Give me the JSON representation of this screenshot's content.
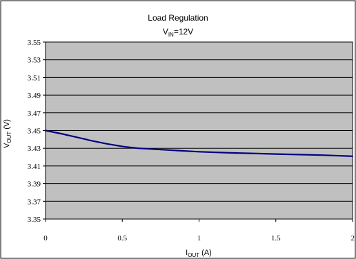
{
  "chart_data": {
    "type": "line",
    "title": "Load Regulation",
    "subtitle": {
      "main": "V",
      "sub": "IN",
      "rest": "=12V"
    },
    "xlabel": {
      "main": "I",
      "sub": "OUT",
      "rest": " (A)"
    },
    "ylabel": {
      "main": "V",
      "sub": "OUT",
      "rest": " (V)"
    },
    "xlim": [
      0,
      2
    ],
    "ylim": [
      3.35,
      3.55
    ],
    "x_ticks": [
      0,
      0.5,
      1,
      1.5,
      2
    ],
    "x_tick_labels": [
      "0",
      "0.5",
      "1",
      "1.5",
      "2"
    ],
    "y_ticks": [
      3.35,
      3.37,
      3.39,
      3.41,
      3.43,
      3.45,
      3.47,
      3.49,
      3.51,
      3.53,
      3.55
    ],
    "y_tick_labels": [
      "3.35",
      "3.37",
      "3.39",
      "3.41",
      "3.43",
      "3.45",
      "3.47",
      "3.49",
      "3.51",
      "3.53",
      "3.55"
    ],
    "grid": "horizontal",
    "legend": "none",
    "colors": {
      "line": "#000080",
      "plot_bg": "#c0c0c0",
      "grid": "#000000"
    },
    "series": [
      {
        "x": [
          0,
          0.1,
          0.2,
          0.3,
          0.4,
          0.5,
          0.6,
          0.8,
          1.0,
          1.2,
          1.5,
          1.8,
          2.0
        ],
        "y": [
          3.45,
          3.4465,
          3.4425,
          3.4385,
          3.435,
          3.432,
          3.43,
          3.428,
          3.426,
          3.4248,
          3.4235,
          3.4222,
          3.421
        ]
      }
    ]
  }
}
